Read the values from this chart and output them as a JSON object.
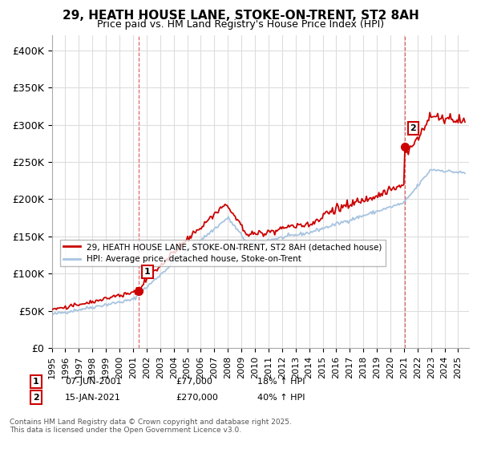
{
  "title_line1": "29, HEATH HOUSE LANE, STOKE-ON-TRENT, ST2 8AH",
  "title_line2": "Price paid vs. HM Land Registry's House Price Index (HPI)",
  "ylabel_ticks": [
    "£0",
    "£50K",
    "£100K",
    "£150K",
    "£200K",
    "£250K",
    "£300K",
    "£350K",
    "£400K"
  ],
  "ytick_values": [
    0,
    50000,
    100000,
    150000,
    200000,
    250000,
    300000,
    350000,
    400000
  ],
  "xlim": [
    1995.0,
    2025.8
  ],
  "ylim": [
    0,
    420000
  ],
  "hpi_color": "#a8c4e0",
  "price_color": "#cc0000",
  "marker1_date": 2001.44,
  "marker1_price": 77000,
  "marker2_date": 2021.04,
  "marker2_price": 270000,
  "marker1_label": "1",
  "marker2_label": "2",
  "legend_line1": "29, HEATH HOUSE LANE, STOKE-ON-TRENT, ST2 8AH (detached house)",
  "legend_line2": "HPI: Average price, detached house, Stoke-on-Trent",
  "footnote": "Contains HM Land Registry data © Crown copyright and database right 2025.\nThis data is licensed under the Open Government Licence v3.0.",
  "grid_color": "#dddddd",
  "bg_color": "#ffffff"
}
